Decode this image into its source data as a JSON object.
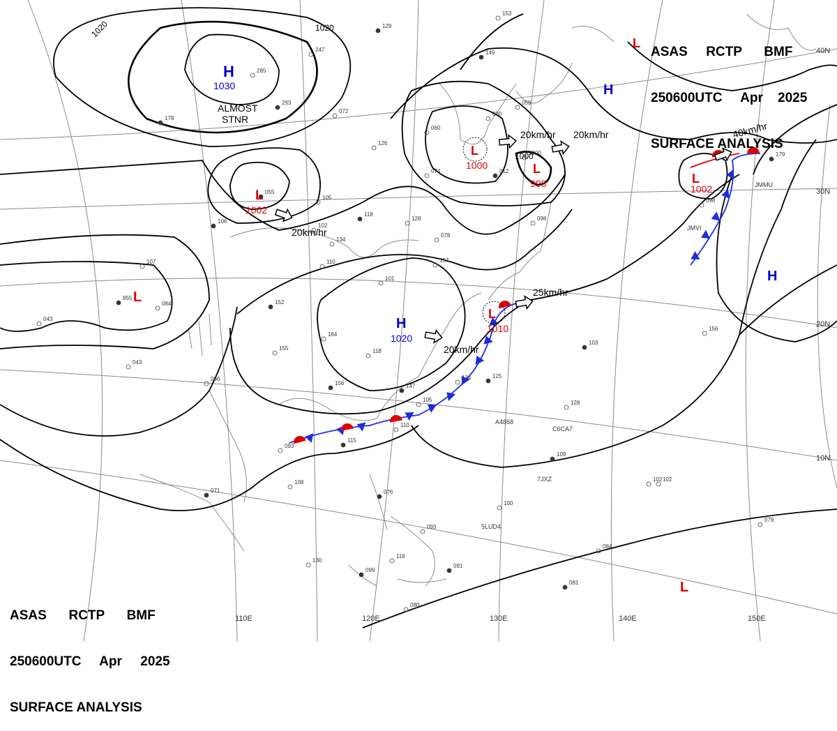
{
  "header": {
    "agency": "ASAS",
    "station": "RCTP",
    "producer": "BMF",
    "time": "250600UTC",
    "month": "Apr",
    "year": "2025",
    "product": "SURFACE ANALYSIS"
  },
  "longitude_labels": [
    "110E",
    "120E",
    "130E",
    "140E",
    "150E"
  ],
  "latitude_labels": [
    "40N",
    "30N",
    "20N",
    "10N"
  ],
  "isobar_labels": [
    "1020",
    "1020",
    "1000",
    "998",
    "1002"
  ],
  "pressure_centers": [
    {
      "type": "H",
      "value": "1030",
      "color": "#0000cc"
    },
    {
      "type": "L",
      "value": "1002",
      "color": "#e00000"
    },
    {
      "type": "L",
      "value": "1000",
      "color": "#e00000"
    },
    {
      "type": "L",
      "value": "998",
      "color": "#e00000"
    },
    {
      "type": "L",
      "value": "1002",
      "color": "#e00000"
    },
    {
      "type": "H",
      "value": "1020",
      "color": "#0000cc"
    },
    {
      "type": "L",
      "value": "1010",
      "color": "#e00000"
    },
    {
      "type": "H",
      "value": "",
      "color": "#0000cc"
    },
    {
      "type": "H",
      "value": "",
      "color": "#0000cc"
    },
    {
      "type": "L",
      "value": "",
      "color": "#e00000"
    },
    {
      "type": "L",
      "value": "",
      "color": "#e00000"
    },
    {
      "type": "L",
      "value": "",
      "color": "#e00000"
    }
  ],
  "movement_labels": [
    "20km/hr",
    "20km/hr",
    "20km/hr",
    "40km/hr",
    "25km/hr",
    "20km/hr"
  ],
  "annotations": {
    "stationary_1": "ALMOST",
    "stationary_2": "STNR"
  },
  "ship_ids": [
    "JMVI",
    "JMMU",
    "A4868",
    "C6CA7",
    "7JXZ",
    "5LUD4"
  ],
  "station_values": [
    "129",
    "247",
    "285",
    "293",
    "072",
    "126",
    "178",
    "107",
    "084",
    "855",
    "043",
    "043",
    "055",
    "105",
    "102",
    "106",
    "134",
    "128",
    "118",
    "101",
    "110",
    "152",
    "155",
    "066",
    "156",
    "164",
    "118",
    "147",
    "105",
    "110",
    "115",
    "093",
    "108",
    "071",
    "098",
    "102",
    "076",
    "093",
    "116",
    "099",
    "130",
    "080",
    "091",
    "060",
    "074",
    "012",
    "030",
    "059",
    "149",
    "153",
    "098",
    "179",
    "157",
    "078",
    "125",
    "134",
    "100",
    "109",
    "102",
    "084",
    "081",
    "079",
    "156",
    "103",
    "128",
    "1000"
  ],
  "colors": {
    "high": "#0000cc",
    "low": "#e00000",
    "cold_front": "#1d2be0",
    "warm_front": "#e00000",
    "isobar": "#000000",
    "grid": "#8a8a8a",
    "coast": "#8c8c8c"
  }
}
